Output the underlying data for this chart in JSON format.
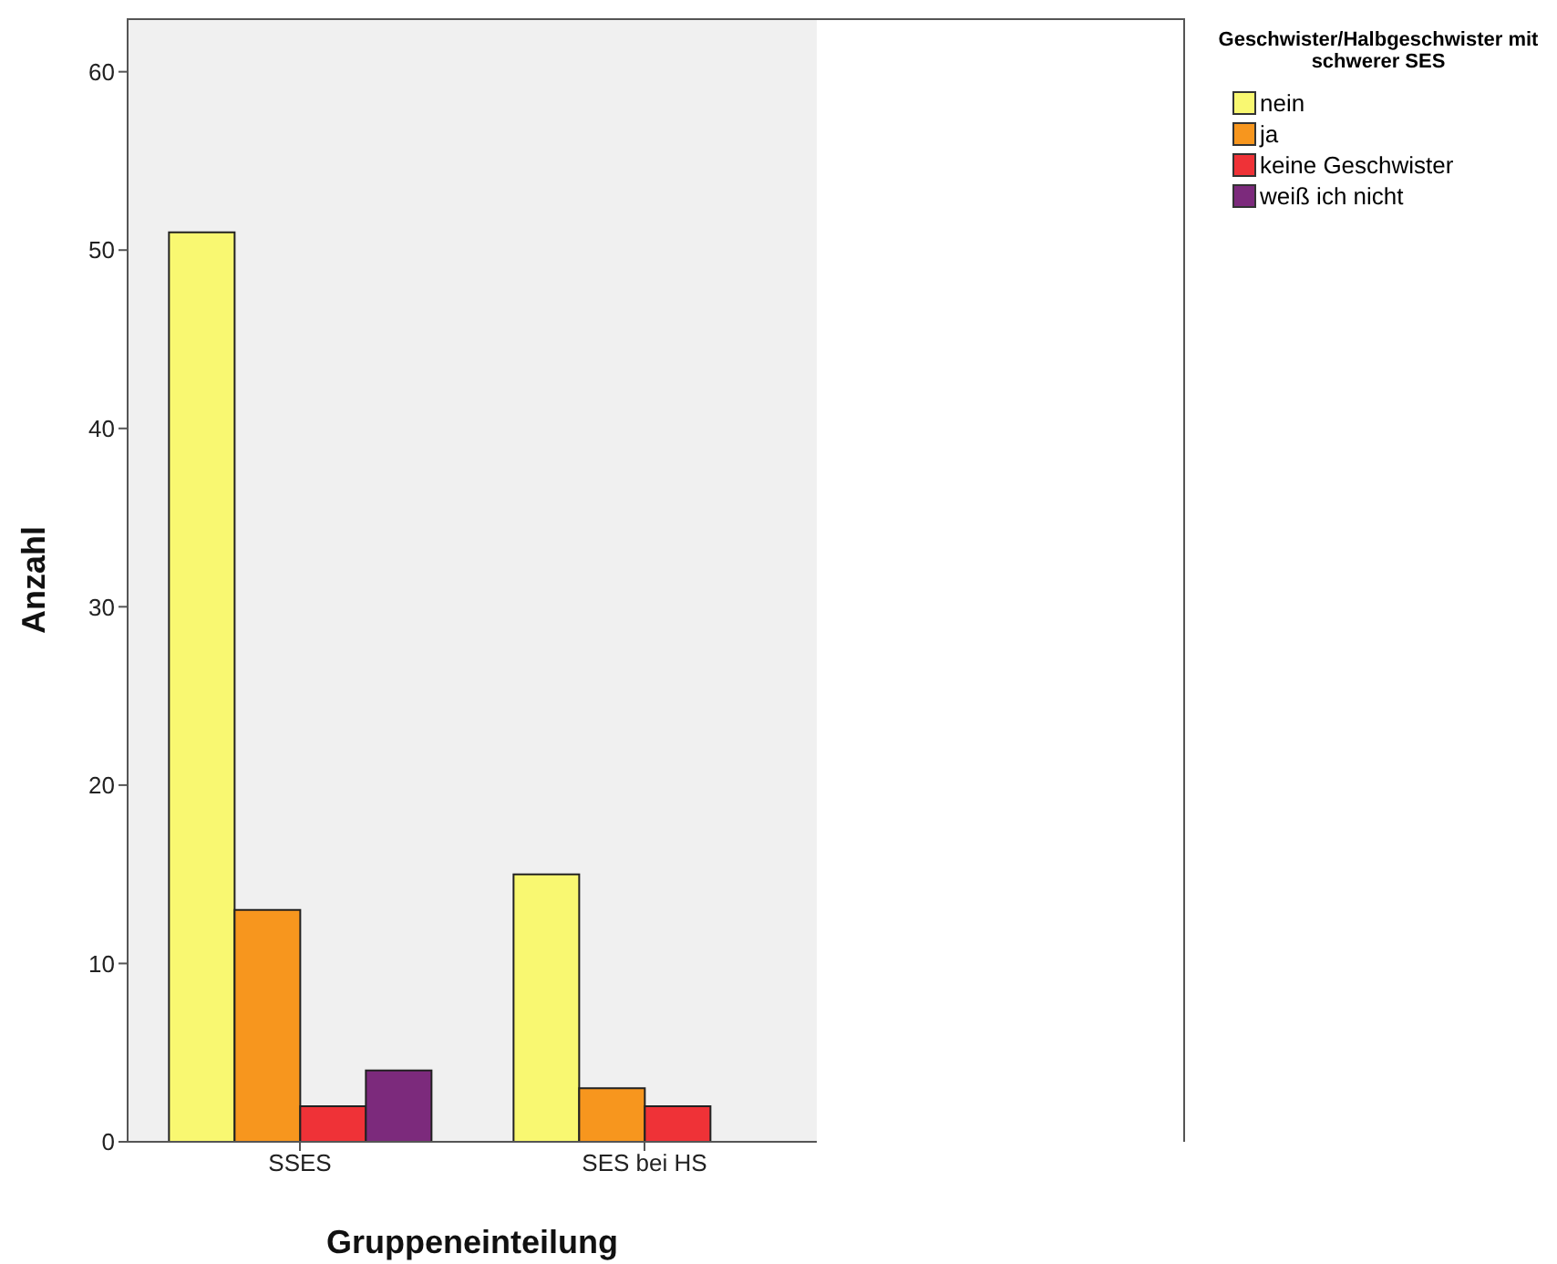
{
  "chart_data": {
    "type": "bar",
    "xlabel": "Gruppeneinteilung",
    "ylabel": "Anzahl",
    "legend_title": "Geschwister/Halbgeschwister mit schwerer SES",
    "categories": [
      "SSES",
      "SES bei HS"
    ],
    "series": [
      {
        "name": "nein",
        "color": "#f9f871",
        "values": [
          51,
          15
        ]
      },
      {
        "name": "ja",
        "color": "#f7961e",
        "values": [
          13,
          3
        ]
      },
      {
        "name": "keine Geschwister",
        "color": "#ef3237",
        "values": [
          2,
          2
        ]
      },
      {
        "name": "weiß ich nicht",
        "color": "#7c2a7c",
        "values": [
          4,
          null
        ]
      }
    ],
    "ylim": [
      0,
      63
    ],
    "yticks": [
      0,
      10,
      20,
      30,
      40,
      50,
      60
    ],
    "grid": false,
    "legend": "top right"
  }
}
